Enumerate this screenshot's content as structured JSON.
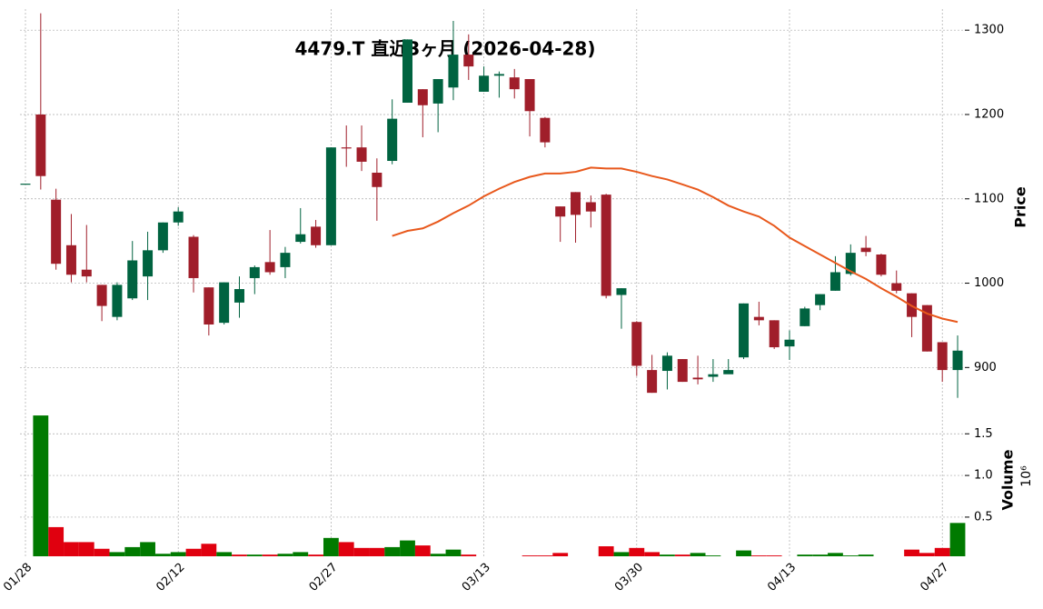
{
  "chart_data": {
    "type": "candlestick",
    "title": "4479.T  直近3ヶ月  (2026-04-28)",
    "categories": [
      "01/28",
      null,
      null,
      null,
      null,
      null,
      null,
      null,
      null,
      null,
      "02/12",
      null,
      null,
      null,
      null,
      null,
      null,
      null,
      null,
      null,
      "02/27",
      null,
      null,
      null,
      null,
      null,
      null,
      null,
      null,
      null,
      "03/13",
      null,
      null,
      null,
      null,
      null,
      null,
      null,
      null,
      null,
      "03/30",
      null,
      null,
      null,
      null,
      null,
      null,
      null,
      null,
      null,
      "04/13",
      null,
      null,
      null,
      null,
      null,
      null,
      null,
      null,
      null,
      "04/27",
      null
    ],
    "open": [
      1118,
      1200,
      1099,
      1045,
      1016,
      998,
      960,
      982,
      1008,
      1039,
      1072,
      1055,
      995,
      953,
      977,
      1006,
      1025,
      1019,
      1049,
      1067,
      1045,
      1161,
      1161,
      1131,
      1145,
      1214,
      1230,
      1213,
      1232,
      1271,
      1227,
      1246,
      1244,
      1242,
      1196,
      1091,
      1108,
      1096,
      1105,
      986,
      954,
      897,
      896,
      910,
      888,
      889,
      892,
      912,
      960,
      956,
      925,
      949,
      974,
      991,
      1011,
      1042,
      1034,
      1000,
      988,
      974,
      930,
      897
    ],
    "high": [
      1118,
      1320,
      1112,
      1082,
      1069,
      998,
      1001,
      1050,
      1061,
      1072,
      1090,
      1057,
      995,
      1001,
      1008,
      1021,
      1063,
      1043,
      1089,
      1075,
      1161,
      1187,
      1187,
      1148,
      1218,
      1289,
      1230,
      1242,
      1311,
      1295,
      1257,
      1251,
      1254,
      1242,
      1197,
      1091,
      1108,
      1104,
      1106,
      994,
      955,
      915,
      918,
      910,
      914,
      910,
      910,
      976,
      978,
      956,
      944,
      972,
      987,
      1032,
      1046,
      1056,
      1035,
      1015,
      988,
      974,
      930,
      938
    ],
    "low": [
      1118,
      1111,
      1016,
      1001,
      1001,
      955,
      956,
      980,
      980,
      1036,
      1068,
      989,
      938,
      951,
      959,
      987,
      1010,
      1006,
      1047,
      1042,
      1045,
      1138,
      1133,
      1074,
      1141,
      1214,
      1173,
      1179,
      1217,
      1241,
      1227,
      1220,
      1219,
      1174,
      1161,
      1049,
      1048,
      1066,
      982,
      946,
      890,
      870,
      874,
      883,
      880,
      883,
      895,
      910,
      950,
      922,
      909,
      949,
      968,
      991,
      1009,
      1032,
      1008,
      988,
      936,
      919,
      883,
      864
    ],
    "close": [
      1118,
      1127,
      1023,
      1010,
      1008,
      973,
      998,
      1027,
      1039,
      1072,
      1085,
      1006,
      951,
      1001,
      993,
      1019,
      1013,
      1036,
      1058,
      1045,
      1161,
      1160,
      1144,
      1114,
      1195,
      1289,
      1211,
      1242,
      1271,
      1257,
      1246,
      1248,
      1230,
      1204,
      1167,
      1079,
      1081,
      1085,
      985,
      994,
      902,
      870,
      914,
      883,
      886,
      892,
      897,
      976,
      956,
      924,
      933,
      970,
      987,
      1013,
      1036,
      1037,
      1010,
      991,
      960,
      919,
      897,
      920
    ],
    "volume": [
      null,
      1.72,
      0.38,
      0.2,
      0.2,
      0.12,
      0.08,
      0.14,
      0.2,
      0.06,
      0.08,
      0.12,
      0.18,
      0.08,
      0.05,
      0.05,
      0.05,
      0.06,
      0.08,
      0.05,
      0.25,
      0.2,
      0.13,
      0.13,
      0.14,
      0.22,
      0.16,
      0.06,
      0.11,
      0.05,
      0.03,
      0.03,
      0.03,
      0.04,
      0.04,
      0.07,
      0.03,
      0.02,
      0.15,
      0.08,
      0.13,
      0.08,
      0.05,
      0.05,
      0.07,
      0.04,
      0.03,
      0.1,
      0.04,
      0.04,
      0.02,
      0.05,
      0.05,
      0.07,
      0.04,
      0.05,
      0.03,
      0.03,
      0.11,
      0.07,
      0.13,
      0.43
    ],
    "ma": [
      null,
      null,
      null,
      null,
      null,
      null,
      null,
      null,
      null,
      null,
      null,
      null,
      null,
      null,
      null,
      null,
      null,
      null,
      null,
      null,
      null,
      null,
      null,
      null,
      1056,
      1062,
      1065,
      1073,
      1083,
      1092,
      1103,
      1112,
      1120,
      1126,
      1130,
      1130,
      1132,
      1137,
      1136,
      1136,
      1132,
      1127,
      1123,
      1117,
      1111,
      1102,
      1092,
      1085,
      1079,
      1068,
      1054,
      1044,
      1034,
      1024,
      1014,
      1005,
      994,
      984,
      973,
      964,
      958,
      954
    ],
    "colors": {
      "up": "#006340",
      "down": "#a01e2a",
      "volume_up": "#007a00",
      "volume_down": "#e0000f",
      "ma": "#e8581c"
    },
    "ylabel": "Price",
    "ylim": [
      854,
      1325
    ],
    "yticks": [
      900,
      1000,
      1100,
      1200,
      1300
    ],
    "volume_label": "Volume",
    "volume_offset": "10⁶",
    "volume_ylim": [
      0.03,
      1.83
    ],
    "volume_yticks": [
      0.5,
      {
        "value": 1,
        "label": "1.0"
      },
      1.5
    ],
    "grid": true
  }
}
